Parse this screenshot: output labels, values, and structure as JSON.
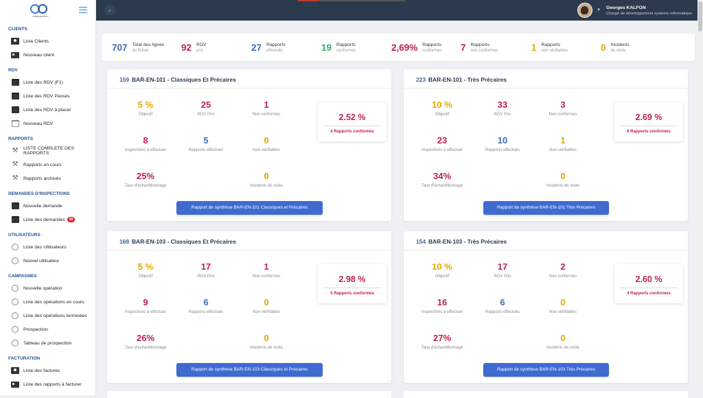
{
  "brand": {
    "logo_text": "datamaintion"
  },
  "sidebar": {
    "sections": [
      {
        "title": "CLIENTS",
        "items": [
          {
            "label": "Liste Clients",
            "icon": "user-card-icon"
          },
          {
            "label": "Nouveau client",
            "icon": "id-card-icon"
          }
        ]
      },
      {
        "title": "RDV",
        "items": [
          {
            "label": "Liste des RDV (F1)",
            "icon": "calendar-icon"
          },
          {
            "label": "Liste des RDV Passés",
            "icon": "calendar-icon"
          },
          {
            "label": "Liste des RDV à placer",
            "icon": "calendar-icon"
          },
          {
            "label": "Nouveau RDV",
            "icon": "calendar-outline-icon"
          }
        ]
      },
      {
        "title": "RAPPORTS",
        "items": [
          {
            "label": "LISTE COMPLETE DES RAPPORTS",
            "icon": "hammer-icon"
          },
          {
            "label": "Rapports en cours",
            "icon": "hammer-icon"
          },
          {
            "label": "Rapports archivés",
            "icon": "hammer-icon"
          }
        ]
      },
      {
        "title": "DEMANDES D'INSPECTIONS",
        "items": [
          {
            "label": "Nouvelle demande",
            "icon": "calendar-icon"
          },
          {
            "label": "Liste des demandes",
            "icon": "calendar-icon",
            "badge": "89"
          }
        ]
      },
      {
        "title": "UTILISATEURS",
        "items": [
          {
            "label": "Liste des Utilisateurs",
            "icon": "circle-icon"
          },
          {
            "label": "Nouvel utilisateur",
            "icon": "circle-icon"
          }
        ]
      },
      {
        "title": "CAMPAGNES",
        "items": [
          {
            "label": "Nouvelle opération",
            "icon": "circle-icon"
          },
          {
            "label": "Liste des opérations en cours",
            "icon": "circle-icon"
          },
          {
            "label": "Liste des opérations terminées",
            "icon": "circle-icon"
          },
          {
            "label": "Prospection",
            "icon": "circle-icon"
          },
          {
            "label": "Tableau de prospection",
            "icon": "circle-icon"
          }
        ]
      },
      {
        "title": "FACTURATION",
        "items": [
          {
            "label": "Liste des factures",
            "icon": "user-card-icon"
          },
          {
            "label": "Liste des rapports à facturer",
            "icon": "id-card-icon"
          }
        ]
      }
    ]
  },
  "user": {
    "name": "Georges KALFON",
    "role": "Chargé de développement systeme informatique"
  },
  "stats": [
    {
      "value": "707",
      "l1": "Total des lignes",
      "l2": "du fichier",
      "color": "#3d6bb5"
    },
    {
      "value": "92",
      "l1": "RDV",
      "l2": "pris",
      "color": "#b9234a"
    },
    {
      "value": "27",
      "l1": "Rapports",
      "l2": "effectués",
      "color": "#3d6bb5"
    },
    {
      "value": "19",
      "l1": "Rapports",
      "l2": "conformes",
      "color": "#2eaf6a"
    },
    {
      "value": "2,69%",
      "l1": "Rapports",
      "l2": "conformes",
      "color": "#b9234a"
    },
    {
      "value": "7",
      "l1": "Rapports",
      "l2": "non conformes",
      "color": "#b9234a"
    },
    {
      "value": "1",
      "l1": "Rapports",
      "l2": "non vérifiables",
      "color": "#e0a800"
    },
    {
      "value": "0",
      "l1": "Incidents",
      "l2": "de visite",
      "color": "#e0a800"
    }
  ],
  "cards": [
    {
      "count": "159",
      "title": "BAR-EN-101 - Classiques Et Précaires",
      "objectif": "5 %",
      "rdv": "25",
      "nonconf": "1",
      "insp": "8",
      "eff": "5",
      "nonverif": "0",
      "taux": "25%",
      "incidents": "0",
      "pct": "2.52 %",
      "pct_label": "4 Rapports conformes",
      "button": "Rapport de synthèse BAR-EN-101 Classiques et Précaires"
    },
    {
      "count": "223",
      "title": "BAR-EN-101 - Très Précaires",
      "objectif": "10 %",
      "rdv": "33",
      "nonconf": "3",
      "insp": "23",
      "eff": "10",
      "nonverif": "1",
      "taux": "34%",
      "incidents": "0",
      "pct": "2.69 %",
      "pct_label": "6 Rapports conformes",
      "button": "Rapport de synthèse BAR-EN-101 Très Précaires"
    },
    {
      "count": "168",
      "title": "BAR-EN-103 - Classiques Et Précaires",
      "objectif": "5 %",
      "rdv": "17",
      "nonconf": "1",
      "insp": "9",
      "eff": "6",
      "nonverif": "0",
      "taux": "26%",
      "incidents": "0",
      "pct": "2.98 %",
      "pct_label": "5 Rapports conformes",
      "button": "Rapport de synthèse BAR-EN-103 Classiques et Précaires"
    },
    {
      "count": "154",
      "title": "BAR-EN-103 - Très Précaires",
      "objectif": "10 %",
      "rdv": "17",
      "nonconf": "2",
      "insp": "16",
      "eff": "6",
      "nonverif": "0",
      "taux": "27%",
      "incidents": "0",
      "pct": "2.60 %",
      "pct_label": "4 Rapports conformes",
      "button": "Rapport de synthèse BAR-EN-103 Très Précaires"
    }
  ],
  "labels": {
    "objectif": "Objectif",
    "rdv": "RDV Pris",
    "nonconf": "Non conformes",
    "insp": "Inspections à effectuer",
    "eff": "Rapports effectués",
    "nonverif": "Non vérifiables",
    "taux": "Taux d'échantillonnage",
    "incidents": "Incidents de visite"
  }
}
